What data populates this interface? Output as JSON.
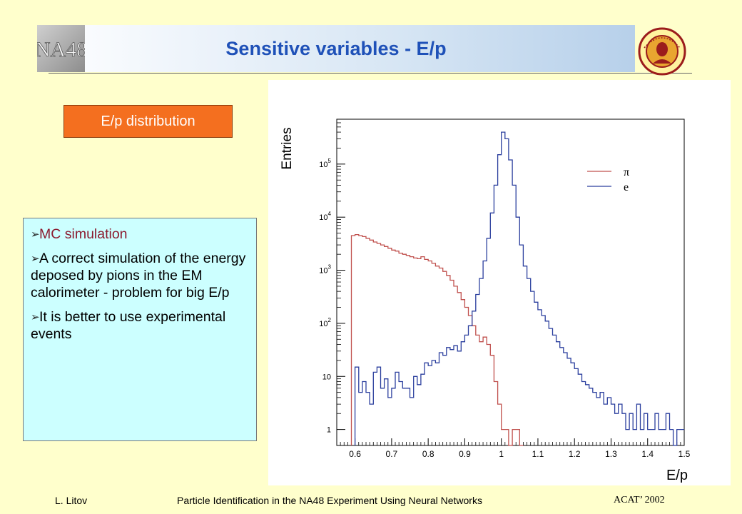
{
  "header": {
    "title": "Sensitive variables - E/p",
    "logo_left_text": "NA48",
    "logo_right": "university-seal"
  },
  "label_box": {
    "text": "E/p distribution"
  },
  "bullets": [
    {
      "text": "MC simulation"
    },
    {
      "text": "A correct simulation of the energy deposed by pions in the EM calorimeter  - problem for big E/p"
    },
    {
      "text": "It is better to use experimental events"
    }
  ],
  "footer": {
    "author": "L. Litov",
    "title": "Particle Identification in the NA48 Experiment Using Neural Networks",
    "conference": "ACAT’ 2002"
  },
  "colors": {
    "background": "#ffffcc",
    "title": "#1f51b8",
    "label_box": "#f46f1f",
    "bullet_box": "#ccffff",
    "pi_series": "#c0504d",
    "e_series": "#2b3f9e"
  },
  "chart_data": {
    "type": "line",
    "xlabel": "E/p",
    "ylabel": "Entries",
    "xlim": [
      0.55,
      1.5
    ],
    "ylim": [
      0.5,
      700000
    ],
    "yscale": "log",
    "xticks": [
      "0.6",
      "0.7",
      "0.8",
      "0.9",
      "1",
      "1.1",
      "1.2",
      "1.3",
      "1.4",
      "1.5"
    ],
    "yticks": [
      "1",
      "10",
      "10^2",
      "10^3",
      "10^4",
      "10^5"
    ],
    "legend_position": "top-right",
    "series": [
      {
        "name": "π",
        "color": "#c0504d",
        "bins": [
          [
            0.59,
            4500
          ],
          [
            0.6,
            4700
          ],
          [
            0.61,
            4500
          ],
          [
            0.62,
            4300
          ],
          [
            0.63,
            4000
          ],
          [
            0.64,
            3700
          ],
          [
            0.65,
            3400
          ],
          [
            0.66,
            3200
          ],
          [
            0.67,
            3000
          ],
          [
            0.68,
            2800
          ],
          [
            0.69,
            2600
          ],
          [
            0.7,
            2400
          ],
          [
            0.71,
            2300
          ],
          [
            0.72,
            2100
          ],
          [
            0.73,
            2000
          ],
          [
            0.74,
            1900
          ],
          [
            0.75,
            1800
          ],
          [
            0.76,
            1700
          ],
          [
            0.77,
            1650
          ],
          [
            0.78,
            1800
          ],
          [
            0.79,
            1600
          ],
          [
            0.8,
            1500
          ],
          [
            0.81,
            1350
          ],
          [
            0.82,
            1200
          ],
          [
            0.83,
            1100
          ],
          [
            0.84,
            950
          ],
          [
            0.85,
            800
          ],
          [
            0.86,
            650
          ],
          [
            0.87,
            500
          ],
          [
            0.88,
            380
          ],
          [
            0.89,
            280
          ],
          [
            0.9,
            200
          ],
          [
            0.91,
            140
          ],
          [
            0.92,
            90
          ],
          [
            0.93,
            60
          ],
          [
            0.94,
            45
          ],
          [
            0.95,
            55
          ],
          [
            0.96,
            40
          ],
          [
            0.97,
            25
          ],
          [
            0.98,
            8
          ],
          [
            0.99,
            3
          ],
          [
            1.0,
            1
          ],
          [
            1.01,
            1
          ],
          [
            1.02,
            0.4
          ],
          [
            1.03,
            1
          ],
          [
            1.04,
            1
          ],
          [
            1.05,
            0.4
          ]
        ]
      },
      {
        "name": "e",
        "color": "#2b3f9e",
        "bins": [
          [
            0.6,
            15
          ],
          [
            0.61,
            5
          ],
          [
            0.62,
            8
          ],
          [
            0.63,
            5
          ],
          [
            0.64,
            3
          ],
          [
            0.65,
            12
          ],
          [
            0.66,
            15
          ],
          [
            0.67,
            6
          ],
          [
            0.68,
            9
          ],
          [
            0.69,
            4
          ],
          [
            0.7,
            6
          ],
          [
            0.71,
            12
          ],
          [
            0.72,
            8
          ],
          [
            0.73,
            6
          ],
          [
            0.74,
            6
          ],
          [
            0.75,
            4
          ],
          [
            0.76,
            10
          ],
          [
            0.77,
            7
          ],
          [
            0.78,
            11
          ],
          [
            0.79,
            18
          ],
          [
            0.8,
            16
          ],
          [
            0.81,
            20
          ],
          [
            0.82,
            18
          ],
          [
            0.83,
            28
          ],
          [
            0.84,
            25
          ],
          [
            0.85,
            35
          ],
          [
            0.86,
            32
          ],
          [
            0.87,
            38
          ],
          [
            0.88,
            30
          ],
          [
            0.89,
            45
          ],
          [
            0.9,
            60
          ],
          [
            0.91,
            90
          ],
          [
            0.92,
            170
          ],
          [
            0.93,
            350
          ],
          [
            0.94,
            700
          ],
          [
            0.95,
            1500
          ],
          [
            0.96,
            4000
          ],
          [
            0.97,
            12000
          ],
          [
            0.98,
            40000
          ],
          [
            0.99,
            150000
          ],
          [
            1.0,
            400000
          ],
          [
            1.01,
            300000
          ],
          [
            1.02,
            120000
          ],
          [
            1.03,
            40000
          ],
          [
            1.04,
            10000
          ],
          [
            1.05,
            3000
          ],
          [
            1.06,
            1200
          ],
          [
            1.07,
            700
          ],
          [
            1.08,
            400
          ],
          [
            1.09,
            250
          ],
          [
            1.1,
            180
          ],
          [
            1.11,
            140
          ],
          [
            1.12,
            110
          ],
          [
            1.13,
            80
          ],
          [
            1.14,
            60
          ],
          [
            1.15,
            45
          ],
          [
            1.16,
            35
          ],
          [
            1.17,
            28
          ],
          [
            1.18,
            22
          ],
          [
            1.19,
            18
          ],
          [
            1.2,
            14
          ],
          [
            1.21,
            11
          ],
          [
            1.22,
            8
          ],
          [
            1.23,
            7
          ],
          [
            1.24,
            6
          ],
          [
            1.25,
            5
          ],
          [
            1.26,
            4
          ],
          [
            1.27,
            5
          ],
          [
            1.28,
            3
          ],
          [
            1.29,
            4
          ],
          [
            1.3,
            3
          ],
          [
            1.31,
            2
          ],
          [
            1.32,
            3
          ],
          [
            1.33,
            2
          ],
          [
            1.34,
            1
          ],
          [
            1.35,
            2
          ],
          [
            1.36,
            1
          ],
          [
            1.37,
            3
          ],
          [
            1.38,
            1
          ],
          [
            1.39,
            2
          ],
          [
            1.4,
            1
          ],
          [
            1.41,
            1
          ],
          [
            1.42,
            2
          ],
          [
            1.43,
            1
          ],
          [
            1.44,
            1
          ],
          [
            1.45,
            2
          ],
          [
            1.46,
            1
          ],
          [
            1.47,
            0.5
          ],
          [
            1.48,
            1
          ],
          [
            1.49,
            1
          ]
        ]
      }
    ]
  }
}
